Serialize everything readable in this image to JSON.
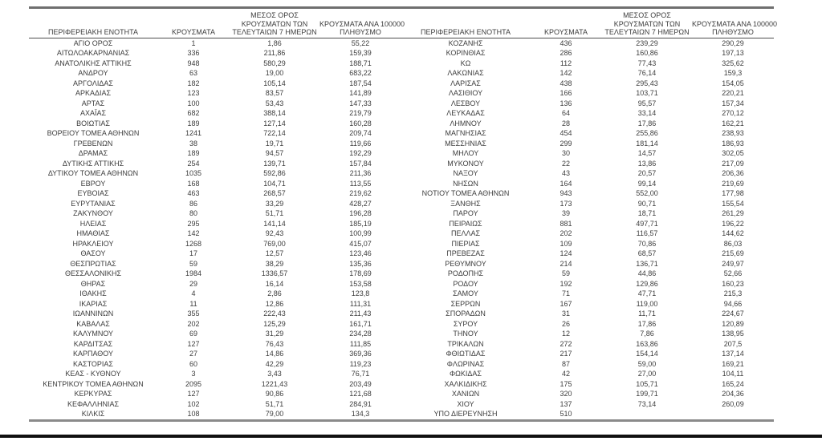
{
  "table": {
    "headers": {
      "region": "ΠΕΡΙΦΕΡΕΙΑΚΗ ΕΝΟΤΗΤΑ",
      "cases": "ΚΡΟΥΣΜΑΤΑ",
      "avg7": "ΜΕΣΟΣ ΟΡΟΣ\nΚΡΟΥΣΜΑΤΩΝ ΤΩΝ\nΤΕΛΕΥΤΑΙΩΝ 7 ΗΜΕΡΩΝ",
      "per100k": "ΚΡΟΥΣΜΑΤΑ ΑΝΑ 100000\nΠΛΗΘΥΣΜΟ"
    },
    "left_rows": [
      [
        "ΑΓΙΟ ΟΡΟΣ",
        "1",
        "1,86",
        "55,22"
      ],
      [
        "ΑΙΤΩΛΟΑΚΑΡΝΑΝΙΑΣ",
        "336",
        "211,86",
        "159,39"
      ],
      [
        "ΑΝΑΤΟΛΙΚΗΣ ΑΤΤΙΚΗΣ",
        "948",
        "580,29",
        "188,71"
      ],
      [
        "ΑΝΔΡΟΥ",
        "63",
        "19,00",
        "683,22"
      ],
      [
        "ΑΡΓΟΛΙΔΑΣ",
        "182",
        "105,14",
        "187,54"
      ],
      [
        "ΑΡΚΑΔΙΑΣ",
        "123",
        "83,57",
        "141,89"
      ],
      [
        "ΑΡΤΑΣ",
        "100",
        "53,43",
        "147,33"
      ],
      [
        "ΑΧΑΪΑΣ",
        "682",
        "388,14",
        "219,79"
      ],
      [
        "ΒΟΙΩΤΙΑΣ",
        "189",
        "127,14",
        "160,28"
      ],
      [
        "ΒΟΡΕΙΟΥ ΤΟΜΕΑ ΑΘΗΝΩΝ",
        "1241",
        "722,14",
        "209,74"
      ],
      [
        "ΓΡΕΒΕΝΩΝ",
        "38",
        "19,71",
        "119,66"
      ],
      [
        "ΔΡΑΜΑΣ",
        "189",
        "94,57",
        "192,29"
      ],
      [
        "ΔΥΤΙΚΗΣ ΑΤΤΙΚΗΣ",
        "254",
        "139,71",
        "157,84"
      ],
      [
        "ΔΥΤΙΚΟΥ ΤΟΜΕΑ ΑΘΗΝΩΝ",
        "1035",
        "592,86",
        "211,36"
      ],
      [
        "ΕΒΡΟΥ",
        "168",
        "104,71",
        "113,55"
      ],
      [
        "ΕΥΒΟΙΑΣ",
        "463",
        "268,57",
        "219,62"
      ],
      [
        "ΕΥΡΥΤΑΝΙΑΣ",
        "86",
        "33,29",
        "428,27"
      ],
      [
        "ΖΑΚΥΝΘΟΥ",
        "80",
        "51,71",
        "196,28"
      ],
      [
        "ΗΛΕΙΑΣ",
        "295",
        "141,14",
        "185,19"
      ],
      [
        "ΗΜΑΘΙΑΣ",
        "142",
        "92,43",
        "100,99"
      ],
      [
        "ΗΡΑΚΛΕΙΟΥ",
        "1268",
        "769,00",
        "415,07"
      ],
      [
        "ΘΑΣΟΥ",
        "17",
        "12,57",
        "123,46"
      ],
      [
        "ΘΕΣΠΡΩΤΙΑΣ",
        "59",
        "38,29",
        "135,36"
      ],
      [
        "ΘΕΣΣΑΛΟΝΙΚΗΣ",
        "1984",
        "1336,57",
        "178,69"
      ],
      [
        "ΘΗΡΑΣ",
        "29",
        "16,14",
        "153,58"
      ],
      [
        "ΙΘΑΚΗΣ",
        "4",
        "2,86",
        "123,8"
      ],
      [
        "ΙΚΑΡΙΑΣ",
        "11",
        "12,86",
        "111,31"
      ],
      [
        "ΙΩΑΝΝΙΝΩΝ",
        "355",
        "222,43",
        "211,43"
      ],
      [
        "ΚΑΒΑΛΑΣ",
        "202",
        "125,29",
        "161,71"
      ],
      [
        "ΚΑΛΥΜΝΟΥ",
        "69",
        "31,29",
        "234,28"
      ],
      [
        "ΚΑΡΔΙΤΣΑΣ",
        "127",
        "76,43",
        "111,85"
      ],
      [
        "ΚΑΡΠΑΘΟΥ",
        "27",
        "14,86",
        "369,36"
      ],
      [
        "ΚΑΣΤΟΡΙΑΣ",
        "60",
        "42,29",
        "119,23"
      ],
      [
        "ΚΕΑΣ - ΚΥΘΝΟΥ",
        "3",
        "3,43",
        "76,71"
      ],
      [
        "ΚΕΝΤΡΙΚΟΥ ΤΟΜΕΑ ΑΘΗΝΩΝ",
        "2095",
        "1221,43",
        "203,49"
      ],
      [
        "ΚΕΡΚΥΡΑΣ",
        "127",
        "90,86",
        "121,68"
      ],
      [
        "ΚΕΦΑΛΛΗΝΙΑΣ",
        "102",
        "51,71",
        "284,91"
      ],
      [
        "ΚΙΛΚΙΣ",
        "108",
        "79,00",
        "134,3"
      ]
    ],
    "right_rows": [
      [
        "ΚΟΖΑΝΗΣ",
        "436",
        "239,29",
        "290,29"
      ],
      [
        "ΚΟΡΙΝΘΙΑΣ",
        "286",
        "160,86",
        "197,13"
      ],
      [
        "ΚΩ",
        "112",
        "77,43",
        "325,62"
      ],
      [
        "ΛΑΚΩΝΙΑΣ",
        "142",
        "76,14",
        "159,3"
      ],
      [
        "ΛΑΡΙΣΑΣ",
        "438",
        "295,43",
        "154,05"
      ],
      [
        "ΛΑΣΙΘΙΟΥ",
        "166",
        "103,71",
        "220,21"
      ],
      [
        "ΛΕΣΒΟΥ",
        "136",
        "95,57",
        "157,34"
      ],
      [
        "ΛΕΥΚΑΔΑΣ",
        "64",
        "33,14",
        "270,12"
      ],
      [
        "ΛΗΜΝΟΥ",
        "28",
        "17,86",
        "162,21"
      ],
      [
        "ΜΑΓΝΗΣΙΑΣ",
        "454",
        "255,86",
        "238,93"
      ],
      [
        "ΜΕΣΣΗΝΙΑΣ",
        "299",
        "181,14",
        "186,93"
      ],
      [
        "ΜΗΛΟΥ",
        "30",
        "14,57",
        "302,05"
      ],
      [
        "ΜΥΚΟΝΟΥ",
        "22",
        "13,86",
        "217,09"
      ],
      [
        "ΝΑΞΟΥ",
        "43",
        "20,57",
        "206,36"
      ],
      [
        "ΝΗΣΩΝ",
        "164",
        "99,14",
        "219,69"
      ],
      [
        "ΝΟΤΙΟΥ ΤΟΜΕΑ ΑΘΗΝΩΝ",
        "943",
        "552,00",
        "177,98"
      ],
      [
        "ΞΑΝΘΗΣ",
        "173",
        "90,71",
        "155,54"
      ],
      [
        "ΠΑΡΟΥ",
        "39",
        "18,71",
        "261,29"
      ],
      [
        "ΠΕΙΡΑΙΩΣ",
        "881",
        "497,71",
        "196,22"
      ],
      [
        "ΠΕΛΛΑΣ",
        "202",
        "116,57",
        "144,62"
      ],
      [
        "ΠΙΕΡΙΑΣ",
        "109",
        "70,86",
        "86,03"
      ],
      [
        "ΠΡΕΒΕΖΑΣ",
        "124",
        "68,57",
        "215,69"
      ],
      [
        "ΡΕΘΥΜΝΟΥ",
        "214",
        "136,71",
        "249,97"
      ],
      [
        "ΡΟΔΟΠΗΣ",
        "59",
        "44,86",
        "52,66"
      ],
      [
        "ΡΟΔΟΥ",
        "192",
        "129,86",
        "160,23"
      ],
      [
        "ΣΑΜΟΥ",
        "71",
        "47,71",
        "215,3"
      ],
      [
        "ΣΕΡΡΩΝ",
        "167",
        "119,00",
        "94,66"
      ],
      [
        "ΣΠΟΡΑΔΩΝ",
        "31",
        "11,71",
        "224,67"
      ],
      [
        "ΣΥΡΟΥ",
        "26",
        "17,86",
        "120,89"
      ],
      [
        "ΤΗΝΟΥ",
        "12",
        "7,86",
        "138,95"
      ],
      [
        "ΤΡΙΚΑΛΩΝ",
        "272",
        "163,86",
        "207,5"
      ],
      [
        "ΦΘΙΩΤΙΔΑΣ",
        "217",
        "154,14",
        "137,14"
      ],
      [
        "ΦΛΩΡΙΝΑΣ",
        "87",
        "59,00",
        "169,21"
      ],
      [
        "ΦΩΚΙΔΑΣ",
        "42",
        "27,00",
        "104,11"
      ],
      [
        "ΧΑΛΚΙΔΙΚΗΣ",
        "175",
        "105,71",
        "165,24"
      ],
      [
        "ΧΑΝΙΩΝ",
        "320",
        "199,71",
        "204,36"
      ],
      [
        "ΧΙΟΥ",
        "137",
        "73,14",
        "260,09"
      ],
      [
        "ΥΠΟ ΔΙΕΡΕΥΝΗΣΗ",
        "510",
        "",
        ""
      ]
    ]
  },
  "colors": {
    "text": "#3d3d3d",
    "border_heavy": "#6f6f6f",
    "border_header": "#4d4d4d",
    "bottom_bar": "#101010"
  }
}
